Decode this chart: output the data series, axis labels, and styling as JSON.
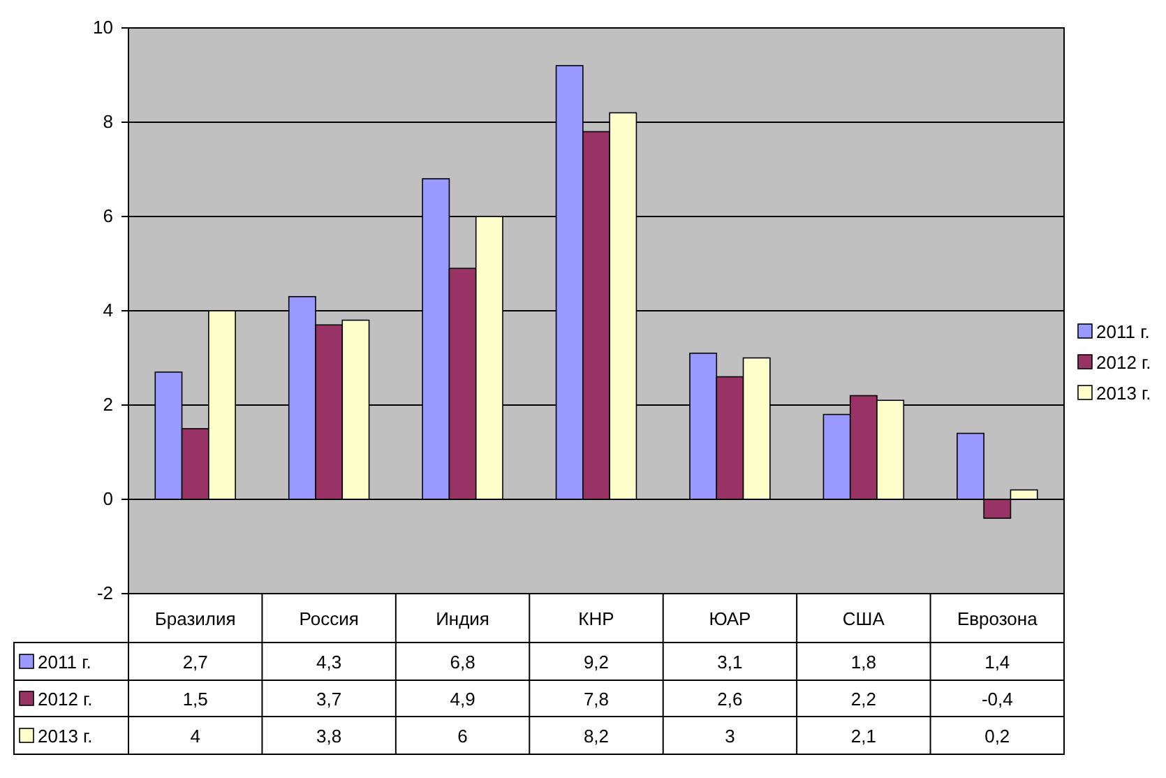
{
  "chart_data": {
    "type": "bar",
    "categories": [
      "Бразилия",
      "Россия",
      "Индия",
      "КНР",
      "ЮАР",
      "США",
      "Еврозона"
    ],
    "series": [
      {
        "name": "2011 г.",
        "color": "#9999ff",
        "values": [
          2.7,
          4.3,
          6.8,
          9.2,
          3.1,
          1.8,
          1.4
        ],
        "value_labels": [
          "2,7",
          "4,3",
          "6,8",
          "9,2",
          "3,1",
          "1,8",
          "1,4"
        ]
      },
      {
        "name": "2012 г.",
        "color": "#993366",
        "values": [
          1.5,
          3.7,
          4.9,
          7.8,
          2.6,
          2.2,
          -0.4
        ],
        "value_labels": [
          "1,5",
          "3,7",
          "4,9",
          "7,8",
          "2,6",
          "2,2",
          "-0,4"
        ]
      },
      {
        "name": "2013 г.",
        "color": "#ffffcc",
        "values": [
          4,
          3.8,
          6,
          8.2,
          3,
          2.1,
          0.2
        ],
        "value_labels": [
          "4",
          "3,8",
          "6",
          "8,2",
          "3",
          "2,1",
          "0,2"
        ]
      }
    ],
    "ylim": [
      -2,
      10
    ],
    "yticks": [
      -2,
      0,
      2,
      4,
      6,
      8,
      10
    ],
    "grid": "y",
    "legend": "right"
  }
}
